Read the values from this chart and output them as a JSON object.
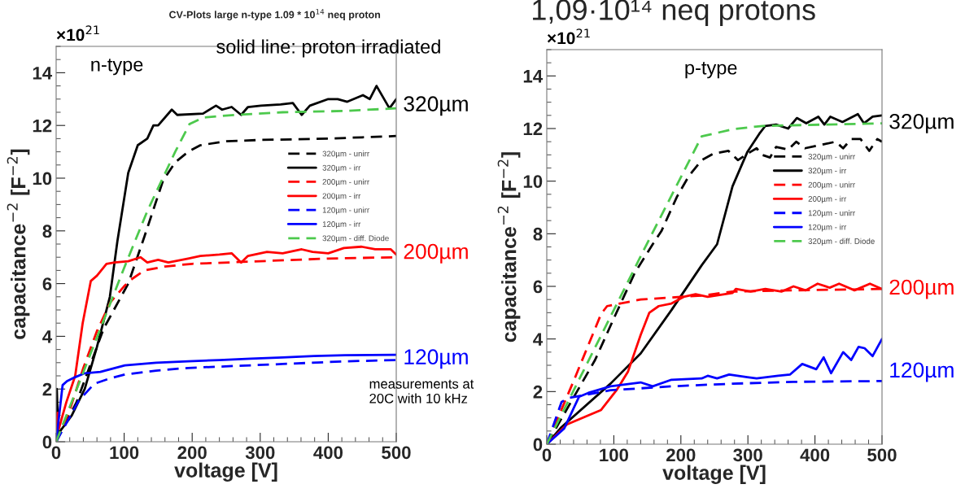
{
  "chart_data": [
    {
      "type": "line",
      "title": "CV-Plots large n-type 1.09 * 10$^{14}$ neq proton",
      "xlabel": "voltage [V]",
      "ylabel": "capacitance$^{−2}$ [F$^{−2}$]",
      "xlim": [
        0,
        500
      ],
      "ylim": [
        0,
        15
      ],
      "xticks": [
        0,
        100,
        200,
        300,
        400,
        500
      ],
      "yticks": [
        0,
        2,
        4,
        6,
        8,
        10,
        12,
        14
      ],
      "grid": false,
      "legend": "right",
      "annotations": [
        "×10$^{21}$",
        "n-type",
        "solid line: proton irradiated",
        "measurements at\n20C with 10 kHz",
        "320µm",
        "200µm",
        "120µm"
      ],
      "series": [
        {
          "name": "320µm - unirr",
          "color": "#000000",
          "line_style": "dashed",
          "x": [
            0,
            30,
            70,
            106,
            130,
            157,
            175,
            194,
            212,
            250,
            300,
            400,
            450,
            500
          ],
          "values": [
            0,
            1.5,
            4.3,
            6.0,
            7.8,
            9.9,
            10.6,
            11.0,
            11.25,
            11.4,
            11.45,
            11.5,
            11.55,
            11.6
          ]
        },
        {
          "name": "320µm - irr",
          "color": "#000000",
          "line_style": "solid",
          "x": [
            0,
            1,
            3,
            23,
            42,
            60,
            79,
            90,
            106,
            120,
            134,
            143,
            150,
            170,
            178,
            216,
            235,
            244,
            258,
            272,
            282,
            301,
            330,
            348,
            361,
            373,
            400,
            414,
            428,
            451,
            461,
            471,
            490,
            500
          ],
          "values": [
            0,
            2.0,
            0.3,
            1.0,
            2.0,
            3.6,
            5.5,
            7.6,
            10.2,
            11.25,
            11.5,
            12.0,
            12.0,
            12.6,
            12.4,
            12.45,
            12.75,
            12.6,
            12.7,
            12.4,
            12.7,
            12.75,
            12.8,
            12.85,
            12.4,
            12.75,
            13.0,
            13.0,
            12.9,
            13.15,
            13.0,
            13.5,
            12.65,
            13.0
          ]
        },
        {
          "name": "200µm - unirr",
          "color": "#ff0000",
          "line_style": "dashed",
          "x": [
            0,
            20,
            40,
            60,
            80,
            100,
            110,
            130,
            160,
            200,
            300,
            400,
            500
          ],
          "values": [
            0,
            1.2,
            2.8,
            4.2,
            5.3,
            5.9,
            6.15,
            6.5,
            6.65,
            6.75,
            6.85,
            6.95,
            7.0
          ]
        },
        {
          "name": "200µm - irr",
          "color": "#ff0000",
          "line_style": "solid",
          "x": [
            0,
            2,
            4,
            15,
            28,
            39,
            51,
            60,
            74,
            86,
            106,
            124,
            134,
            150,
            165,
            194,
            212,
            240,
            258,
            272,
            282,
            310,
            333,
            361,
            377,
            400,
            423,
            449,
            469,
            492,
            500
          ],
          "values": [
            0,
            1.1,
            0.5,
            1.5,
            2.5,
            4.5,
            6.1,
            6.3,
            6.75,
            6.8,
            6.85,
            7.0,
            6.8,
            6.9,
            6.8,
            6.95,
            7.05,
            7.1,
            7.15,
            6.8,
            7.05,
            7.2,
            7.15,
            7.3,
            7.2,
            7.15,
            7.35,
            7.4,
            7.3,
            7.3,
            7.1
          ]
        },
        {
          "name": "120µm - unirr",
          "color": "#0000ff",
          "line_style": "dashed",
          "x": [
            0,
            33,
            56,
            79,
            101,
            147,
            194,
            240,
            333,
            425,
            500
          ],
          "values": [
            0,
            1.55,
            2.2,
            2.4,
            2.55,
            2.7,
            2.8,
            2.85,
            2.95,
            3.05,
            3.1
          ]
        },
        {
          "name": "120µm - irr",
          "color": "#0000ff",
          "line_style": "solid",
          "x": [
            0,
            9.5,
            16,
            28,
            42,
            65,
            101,
            147,
            194,
            240,
            286,
            333,
            379,
            425,
            500
          ],
          "values": [
            0,
            2.15,
            2.3,
            2.45,
            2.6,
            2.65,
            2.9,
            3.0,
            3.05,
            3.1,
            3.15,
            3.2,
            3.25,
            3.28,
            3.3
          ]
        },
        {
          "name": "320µm - diff. Diode",
          "color": "#4dc94d",
          "line_style": "dashed",
          "x": [
            0,
            50,
            100,
            134,
            175,
            196,
            216,
            262,
            333,
            425,
            500
          ],
          "values": [
            0,
            3.3,
            6.6,
            8.75,
            11.0,
            12.05,
            12.3,
            12.4,
            12.5,
            12.55,
            12.65
          ]
        }
      ]
    },
    {
      "type": "line",
      "title": "1,09·10¹⁴ neq protons",
      "xlabel": "voltage [V]",
      "ylabel": "capacitance$^{−2}$ [F$^{−2}$]",
      "xlim": [
        0,
        500
      ],
      "ylim": [
        0,
        15
      ],
      "xticks": [
        0,
        100,
        200,
        300,
        400,
        500
      ],
      "yticks": [
        0,
        2,
        4,
        6,
        8,
        10,
        12,
        14
      ],
      "grid": false,
      "legend": "right",
      "annotations": [
        "×10$^{21}$",
        "p-type",
        "320µm",
        "200µm",
        "120µm"
      ],
      "series": [
        {
          "name": "320µm - unirr",
          "color": "#000000",
          "line_style": "dashed",
          "x": [
            0,
            72,
            103,
            131,
            158,
            171,
            194,
            212,
            231,
            249,
            271,
            285,
            303,
            313,
            321,
            333,
            342,
            360,
            372,
            385,
            413,
            431,
            442,
            454,
            468,
            481,
            493,
            500
          ],
          "values": [
            0,
            3.2,
            4.95,
            6.5,
            7.6,
            8.1,
            9.4,
            10.2,
            10.8,
            11.05,
            11.15,
            10.8,
            11.1,
            11.25,
            11.0,
            10.9,
            11.3,
            11.2,
            11.5,
            11.25,
            11.4,
            11.5,
            11.25,
            11.6,
            11.6,
            11.15,
            11.6,
            11.5
          ]
        },
        {
          "name": "320µm - irr",
          "color": "#000000",
          "line_style": "solid",
          "x": [
            0,
            22,
            95,
            140,
            186,
            231,
            254,
            277,
            299,
            317,
            326,
            342,
            360,
            373,
            387,
            405,
            414,
            423,
            441,
            464,
            473,
            486,
            500
          ],
          "values": [
            0,
            0.65,
            2.3,
            3.45,
            5.1,
            6.8,
            7.6,
            9.8,
            11.1,
            11.8,
            12.1,
            12.15,
            12.0,
            12.4,
            12.2,
            12.45,
            12.15,
            12.45,
            12.25,
            12.55,
            12.2,
            12.45,
            12.5
          ]
        },
        {
          "name": "200µm - unirr",
          "color": "#ff0000",
          "line_style": "dashed",
          "x": [
            0,
            40,
            81,
            90,
            140,
            231,
            277,
            368,
            500
          ],
          "values": [
            0,
            2.4,
            4.95,
            5.25,
            5.5,
            5.65,
            5.8,
            5.85,
            5.9
          ]
        },
        {
          "name": "200µm - irr",
          "color": "#ff0000",
          "line_style": "solid",
          "x": [
            0,
            30,
            81,
            104,
            121,
            140,
            153,
            167,
            186,
            204,
            222,
            240,
            277,
            282,
            304,
            326,
            350,
            368,
            386,
            404,
            422,
            436,
            459,
            482,
            500
          ],
          "values": [
            0,
            0.75,
            1.3,
            2.05,
            2.75,
            4.15,
            5.0,
            5.25,
            5.35,
            5.6,
            5.7,
            5.6,
            5.75,
            5.9,
            5.8,
            5.9,
            5.8,
            6.0,
            5.85,
            6.1,
            5.95,
            6.1,
            5.85,
            6.1,
            5.9
          ]
        },
        {
          "name": "120µm - unirr",
          "color": "#0000ff",
          "line_style": "dashed",
          "x": [
            0,
            22,
            31,
            95,
            186,
            277,
            368,
            500
          ],
          "values": [
            0,
            1.6,
            1.75,
            2.05,
            2.2,
            2.3,
            2.37,
            2.4
          ]
        },
        {
          "name": "120µm - irr",
          "color": "#0000ff",
          "line_style": "solid",
          "x": [
            0,
            26,
            48,
            62,
            95,
            140,
            158,
            186,
            231,
            240,
            254,
            272,
            299,
            313,
            345,
            363,
            381,
            402,
            413,
            424,
            442,
            454,
            465,
            474,
            486,
            500
          ],
          "values": [
            0,
            0.6,
            1.8,
            1.95,
            2.2,
            2.35,
            2.2,
            2.45,
            2.5,
            2.6,
            2.5,
            2.65,
            2.55,
            2.5,
            2.6,
            2.65,
            3.05,
            2.85,
            3.3,
            2.7,
            3.5,
            3.2,
            3.7,
            3.65,
            3.35,
            4.0
          ]
        },
        {
          "name": "320µm - diff. Diode",
          "color": "#4dc94d",
          "line_style": "dashed",
          "x": [
            0,
            149,
            231,
            277,
            322,
            413,
            500
          ],
          "values": [
            0,
            7.6,
            11.7,
            11.97,
            12.1,
            12.15,
            12.2
          ]
        }
      ]
    }
  ]
}
